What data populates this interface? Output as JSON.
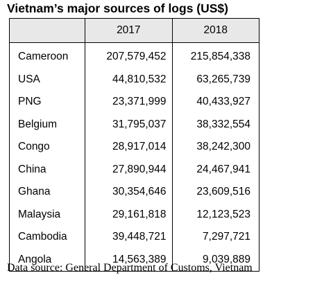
{
  "chart_data": {
    "type": "table",
    "title": "Vietnam’s major sources of logs (US$)",
    "columns": [
      "2017",
      "2018"
    ],
    "rows": [
      {
        "country": "Cameroon",
        "v2017": "207,579,452",
        "v2018": "215,854,338"
      },
      {
        "country": "USA",
        "v2017": "44,810,532",
        "v2018": "63,265,739"
      },
      {
        "country": "PNG",
        "v2017": "23,371,999",
        "v2018": "40,433,927"
      },
      {
        "country": "Belgium",
        "v2017": "31,795,037",
        "v2018": "38,332,554"
      },
      {
        "country": "Congo",
        "v2017": "28,917,014",
        "v2018": "38,242,300"
      },
      {
        "country": "China",
        "v2017": "27,890,944",
        "v2018": "24,467,941"
      },
      {
        "country": "Ghana",
        "v2017": "30,354,646",
        "v2018": "23,609,516"
      },
      {
        "country": "Malaysia",
        "v2017": "29,161,818",
        "v2018": "12,123,523"
      },
      {
        "country": "Cambodia",
        "v2017": "39,448,721",
        "v2018": "7,297,721"
      },
      {
        "country": "Angola",
        "v2017": "14,563,389",
        "v2018": "9,039,889"
      }
    ],
    "source": "Data source: General Department of Customs, Vietnam"
  }
}
